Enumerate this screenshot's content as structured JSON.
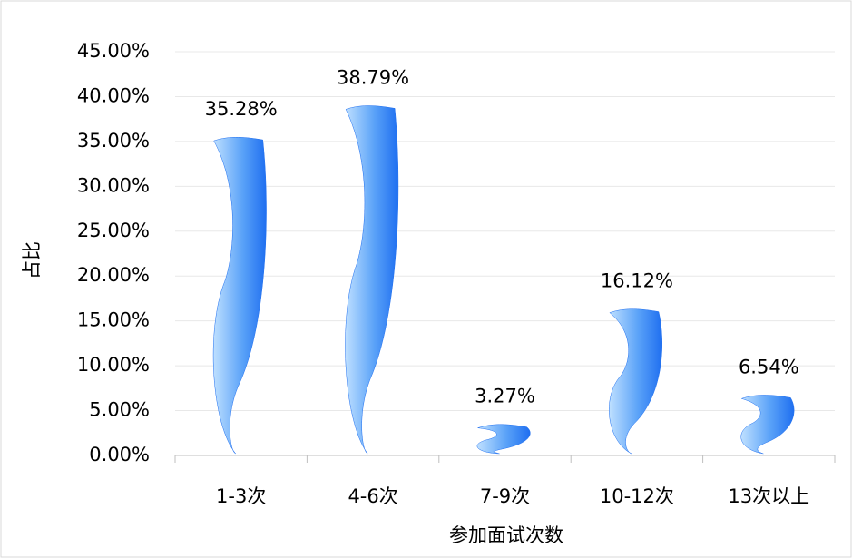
{
  "chart_data": {
    "type": "bar",
    "x_label": "参加面试次数",
    "y_label": "占比",
    "categories": [
      "1-3次",
      "4-6次",
      "7-9次",
      "10-12次",
      "13次以上"
    ],
    "values": [
      35.28,
      38.79,
      3.27,
      16.12,
      6.54
    ],
    "value_labels": [
      "35.28%",
      "38.79%",
      "3.27%",
      "16.12%",
      "6.54%"
    ],
    "color": "#1f6ff0",
    "ylim": [
      0,
      45
    ],
    "yticks": [
      {
        "value": 0,
        "label": "0.00%"
      },
      {
        "value": 5,
        "label": "5.00%"
      },
      {
        "value": 10,
        "label": "10.00%"
      },
      {
        "value": 15,
        "label": "15.00%"
      },
      {
        "value": 20,
        "label": "20.00%"
      },
      {
        "value": 25,
        "label": "25.00%"
      },
      {
        "value": 30,
        "label": "30.00%"
      },
      {
        "value": 35,
        "label": "35.00%"
      },
      {
        "value": 40,
        "label": "40.00%"
      },
      {
        "value": 45,
        "label": "45.00%"
      }
    ],
    "grid": true
  }
}
